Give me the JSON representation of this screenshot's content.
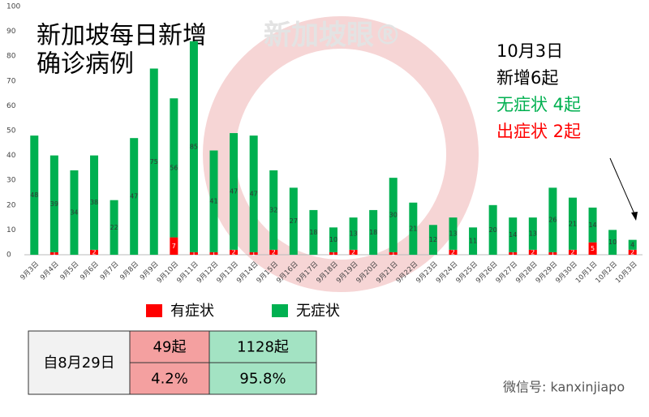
{
  "chart_data": {
    "type": "stacked_bar",
    "title_lines": [
      "新加坡每日新增",
      "确诊病例"
    ],
    "categories": [
      "9月3日",
      "9月4日",
      "9月5日",
      "9月6日",
      "9月7日",
      "9月8日",
      "9月9日",
      "9月10日",
      "9月11日",
      "9月12日",
      "9月13日",
      "9月14日",
      "9月15日",
      "9月16日",
      "9月17日",
      "9月18日",
      "9月19日",
      "9月20日",
      "9月21日",
      "9月22日",
      "9月23日",
      "9月24日",
      "9月25日",
      "9月26日",
      "9月27日",
      "9月28日",
      "9月29日",
      "9月30日",
      "10月1日",
      "10月2日",
      "10月3日"
    ],
    "series": [
      {
        "name": "有症状",
        "color": "#ff0000",
        "values": [
          0,
          1,
          0,
          2,
          0,
          0,
          0,
          7,
          1,
          1,
          2,
          1,
          2,
          0,
          0,
          1,
          2,
          0,
          1,
          0,
          0,
          2,
          0,
          0,
          1,
          2,
          1,
          2,
          5,
          0,
          2
        ]
      },
      {
        "name": "无症状",
        "color": "#00b050",
        "values": [
          48,
          39,
          34,
          38,
          22,
          47,
          75,
          56,
          85,
          41,
          47,
          47,
          32,
          27,
          18,
          10,
          13,
          18,
          30,
          21,
          12,
          13,
          11,
          20,
          14,
          13,
          26,
          21,
          14,
          10,
          4
        ]
      }
    ],
    "ylim": [
      0,
      100
    ],
    "yticks": [
      0,
      10,
      20,
      30,
      40,
      50,
      60,
      70,
      80,
      90,
      100
    ],
    "grid": false,
    "annotations": [
      {
        "text": "10月3日",
        "color": "#000000"
      },
      {
        "text": "新增6起",
        "color": "#000000"
      },
      {
        "text": "无症状 4起",
        "color": "#00b050"
      },
      {
        "text": "出症状 2起",
        "color": "#ff0000"
      }
    ]
  },
  "table": {
    "rows": [
      [
        "自8月29日",
        "49起",
        "1128起"
      ],
      [
        "4.2%",
        "95.8%"
      ]
    ]
  },
  "watermark": "新加坡眼®",
  "footer": "微信号: kanxinjiapo"
}
